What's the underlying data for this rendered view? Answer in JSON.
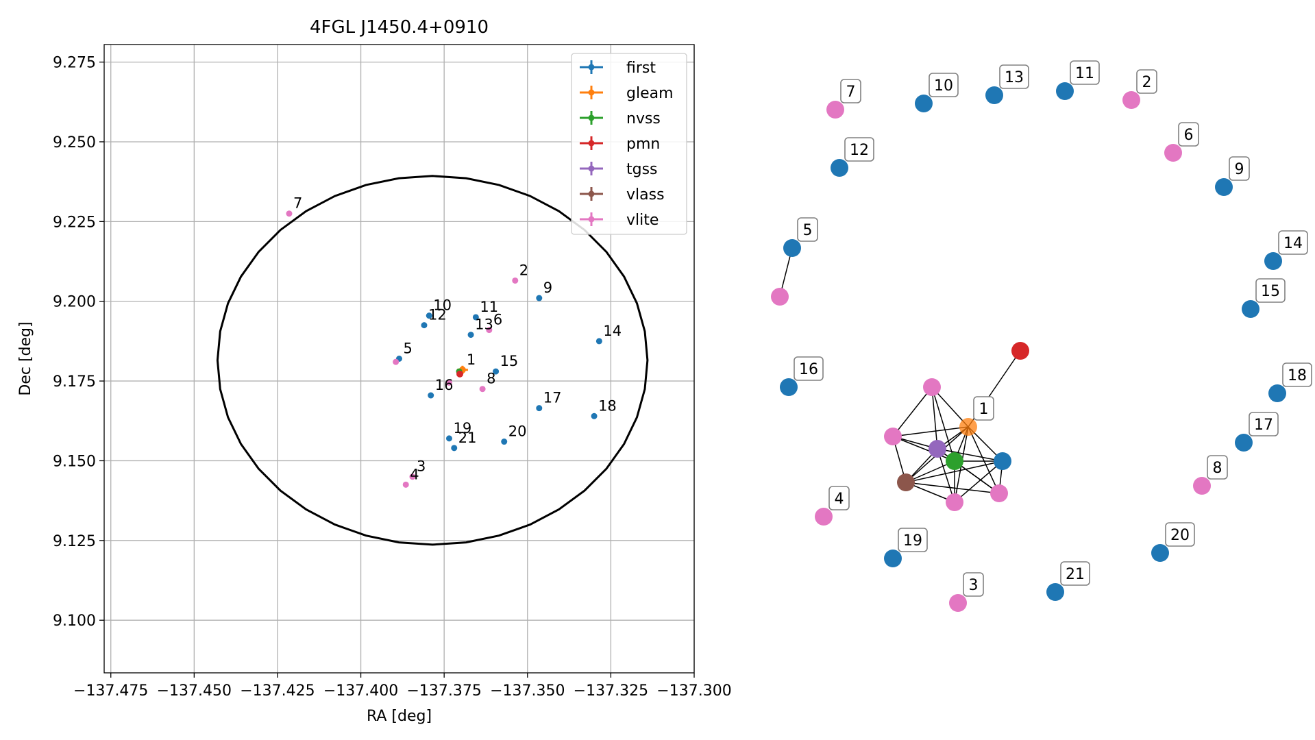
{
  "chart_data": [
    {
      "type": "scatter",
      "title": "4FGL J1450.4+0910",
      "xlabel": "RA [deg]",
      "ylabel": "Dec [deg]",
      "xlim": [
        -137.477,
        -137.3
      ],
      "ylim": [
        9.0835,
        9.2805
      ],
      "xticks": [
        -137.475,
        -137.45,
        -137.425,
        -137.4,
        -137.375,
        -137.35,
        -137.325,
        -137.3
      ],
      "xticklabels": [
        "−137.475",
        "−137.450",
        "−137.425",
        "−137.400",
        "−137.375",
        "−137.350",
        "−137.325",
        "−137.300"
      ],
      "yticks": [
        9.1,
        9.125,
        9.15,
        9.175,
        9.2,
        9.225,
        9.25,
        9.275
      ],
      "yticklabels": [
        "9.100",
        "9.125",
        "9.150",
        "9.175",
        "9.200",
        "9.225",
        "9.250",
        "9.275"
      ],
      "grid": true,
      "legend_position": "top-right",
      "ellipse": {
        "center": [
          -137.3785,
          9.1815
        ],
        "ra_radius": 0.0645,
        "dec_radius": 0.0578
      },
      "series": [
        {
          "name": "first",
          "color": "#1f77b4",
          "points": [
            {
              "label": "5",
              "ra": -137.3885,
              "dec": 9.182
            },
            {
              "label": "9",
              "ra": -137.3465,
              "dec": 9.201
            },
            {
              "label": "10",
              "ra": -137.3795,
              "dec": 9.1955
            },
            {
              "label": "11",
              "ra": -137.3655,
              "dec": 9.195
            },
            {
              "label": "12",
              "ra": -137.381,
              "dec": 9.1925
            },
            {
              "label": "13",
              "ra": -137.367,
              "dec": 9.1895
            },
            {
              "label": "14",
              "ra": -137.3285,
              "dec": 9.1875
            },
            {
              "label": "15",
              "ra": -137.3595,
              "dec": 9.178
            },
            {
              "label": "16",
              "ra": -137.379,
              "dec": 9.1705
            },
            {
              "label": "17",
              "ra": -137.3465,
              "dec": 9.1665
            },
            {
              "label": "18",
              "ra": -137.33,
              "dec": 9.164
            },
            {
              "label": "19",
              "ra": -137.3735,
              "dec": 9.157
            },
            {
              "label": "20",
              "ra": -137.357,
              "dec": 9.156
            },
            {
              "label": "21",
              "ra": -137.372,
              "dec": 9.154
            }
          ]
        },
        {
          "name": "gleam",
          "color": "#ff7f0e",
          "points": [
            {
              "label": "1",
              "ra": -137.3695,
              "dec": 9.1785
            }
          ]
        },
        {
          "name": "nvss",
          "color": "#2ca02c",
          "points": [
            {
              "label": "",
              "ra": -137.3705,
              "dec": 9.178
            }
          ]
        },
        {
          "name": "pmn",
          "color": "#d62728",
          "points": [
            {
              "label": "",
              "ra": -137.3703,
              "dec": 9.1772
            }
          ]
        },
        {
          "name": "tgss",
          "color": "#9467bd",
          "points": []
        },
        {
          "name": "vlass",
          "color": "#8c564b",
          "points": []
        },
        {
          "name": "vlite",
          "color": "#e377c2",
          "points": [
            {
              "label": "2",
              "ra": -137.3537,
              "dec": 9.2065
            },
            {
              "label": "3",
              "ra": -137.3845,
              "dec": 9.145
            },
            {
              "label": "4",
              "ra": -137.3865,
              "dec": 9.1425
            },
            {
              "label": "6",
              "ra": -137.3615,
              "dec": 9.191
            },
            {
              "label": "7",
              "ra": -137.4215,
              "dec": 9.2275
            },
            {
              "label": "8",
              "ra": -137.3635,
              "dec": 9.1725
            },
            {
              "label": "",
              "ra": -137.3735,
              "dec": 9.1745
            },
            {
              "label": "",
              "ra": -137.3895,
              "dec": 9.181
            }
          ]
        }
      ]
    },
    {
      "type": "network",
      "nodes": [
        {
          "label": "1",
          "color": "#ff7f0e"
        },
        {
          "label": "",
          "color": "#d62728"
        },
        {
          "label": "",
          "color": "#2ca02c"
        },
        {
          "label": "",
          "color": "#9467bd"
        },
        {
          "label": "",
          "color": "#8c564b"
        },
        {
          "label": "",
          "color": "#1f77b4"
        },
        {
          "label": "",
          "color": "#e377c2"
        },
        {
          "label": "",
          "color": "#e377c2"
        },
        {
          "label": "",
          "color": "#e377c2"
        },
        {
          "label": "",
          "color": "#e377c2"
        },
        {
          "label": "2",
          "color": "#e377c2"
        },
        {
          "label": "3",
          "color": "#e377c2"
        },
        {
          "label": "4",
          "color": "#e377c2"
        },
        {
          "label": "5",
          "color": "#1f77b4"
        },
        {
          "label": "",
          "color": "#e377c2"
        },
        {
          "label": "6",
          "color": "#e377c2"
        },
        {
          "label": "7",
          "color": "#e377c2"
        },
        {
          "label": "8",
          "color": "#e377c2"
        },
        {
          "label": "9",
          "color": "#1f77b4"
        },
        {
          "label": "10",
          "color": "#1f77b4"
        },
        {
          "label": "11",
          "color": "#1f77b4"
        },
        {
          "label": "12",
          "color": "#1f77b4"
        },
        {
          "label": "13",
          "color": "#1f77b4"
        },
        {
          "label": "14",
          "color": "#1f77b4"
        },
        {
          "label": "15",
          "color": "#1f77b4"
        },
        {
          "label": "16",
          "color": "#1f77b4"
        },
        {
          "label": "17",
          "color": "#1f77b4"
        },
        {
          "label": "18",
          "color": "#1f77b4"
        },
        {
          "label": "19",
          "color": "#1f77b4"
        },
        {
          "label": "20",
          "color": "#1f77b4"
        },
        {
          "label": "21",
          "color": "#1f77b4"
        }
      ],
      "edges": [
        [
          0,
          1
        ],
        [
          0,
          2
        ],
        [
          0,
          3
        ],
        [
          0,
          4
        ],
        [
          0,
          5
        ],
        [
          0,
          6
        ],
        [
          0,
          7
        ],
        [
          0,
          8
        ],
        [
          0,
          9
        ],
        [
          2,
          3
        ],
        [
          2,
          4
        ],
        [
          2,
          5
        ],
        [
          2,
          6
        ],
        [
          2,
          7
        ],
        [
          2,
          8
        ],
        [
          2,
          9
        ],
        [
          3,
          4
        ],
        [
          3,
          5
        ],
        [
          3,
          6
        ],
        [
          3,
          7
        ],
        [
          3,
          8
        ],
        [
          3,
          9
        ],
        [
          4,
          5
        ],
        [
          4,
          6
        ],
        [
          4,
          7
        ],
        [
          4,
          8
        ],
        [
          5,
          7
        ],
        [
          5,
          8
        ],
        [
          6,
          9
        ],
        [
          13,
          14
        ]
      ]
    }
  ]
}
